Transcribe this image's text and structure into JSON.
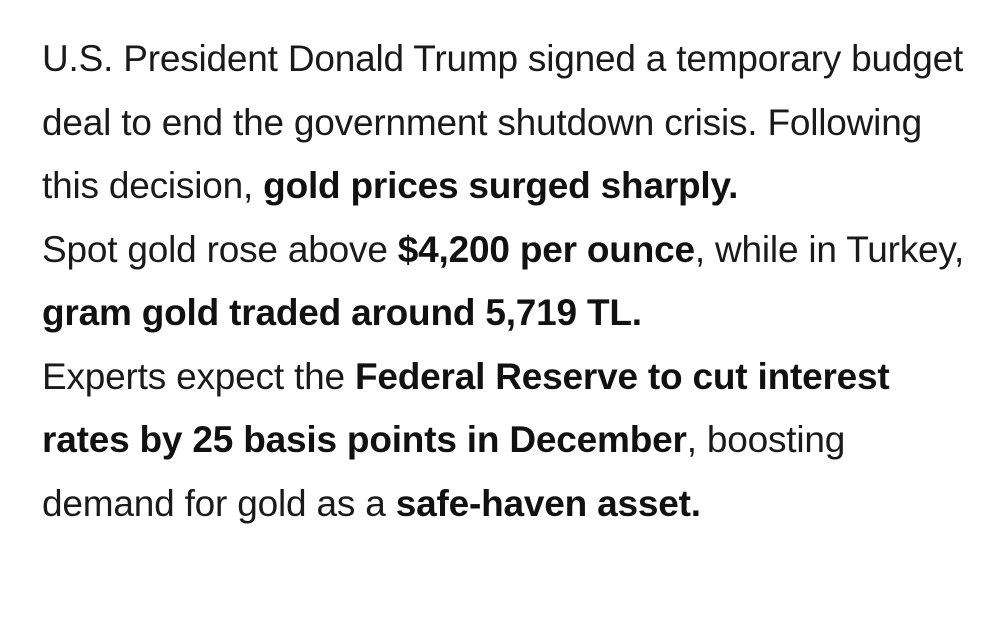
{
  "article": {
    "paragraphs": [
      {
        "segments": [
          {
            "text": "U.S. President Donald Trump signed a temporary budget deal to end the government shutdown crisis. Following this decision, ",
            "bold": false
          },
          {
            "text": "gold prices surged sharply.",
            "bold": true
          }
        ]
      },
      {
        "segments": [
          {
            "text": "Spot gold rose above ",
            "bold": false
          },
          {
            "text": "$4,200 per ounce",
            "bold": true
          },
          {
            "text": ", while in Turkey, ",
            "bold": false
          },
          {
            "text": "gram gold traded around 5,719 TL.",
            "bold": true
          }
        ]
      },
      {
        "segments": [
          {
            "text": "Experts expect the ",
            "bold": false
          },
          {
            "text": "Federal Reserve to cut interest rates by 25 basis points in December",
            "bold": true
          },
          {
            "text": ", boosting demand for gold as a ",
            "bold": false
          },
          {
            "text": "safe-haven asset.",
            "bold": true
          }
        ]
      }
    ]
  }
}
